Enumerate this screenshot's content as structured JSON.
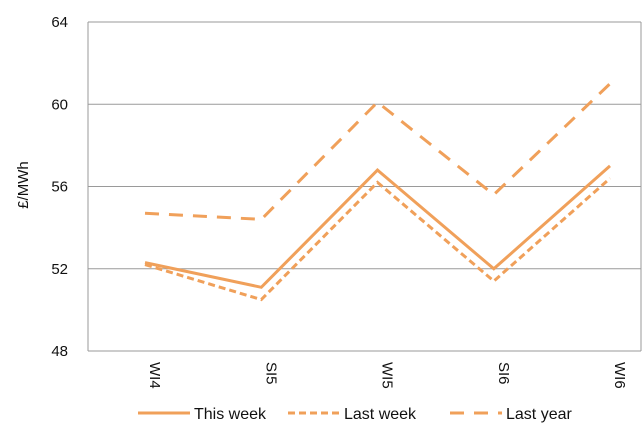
{
  "chart_data": {
    "type": "line",
    "title": "",
    "xlabel": "",
    "ylabel": "£/MWh",
    "categories": [
      "WI4",
      "SI5",
      "WI5",
      "SI6",
      "WI6"
    ],
    "ylim": [
      48,
      64
    ],
    "yticks": [
      48,
      52,
      56,
      60,
      64
    ],
    "grid": true,
    "legend_position": "bottom",
    "series": [
      {
        "name": "This week",
        "values": [
          52.3,
          51.1,
          56.8,
          52.0,
          57.0
        ],
        "color": "#f0a05a",
        "dash": "solid"
      },
      {
        "name": "Last week",
        "values": [
          52.2,
          50.5,
          56.2,
          51.4,
          56.4
        ],
        "color": "#f0a05a",
        "dash": "short-dash"
      },
      {
        "name": "Last year",
        "values": [
          54.7,
          54.4,
          60.1,
          55.6,
          61.0
        ],
        "color": "#f0a05a",
        "dash": "long-dash"
      }
    ]
  }
}
